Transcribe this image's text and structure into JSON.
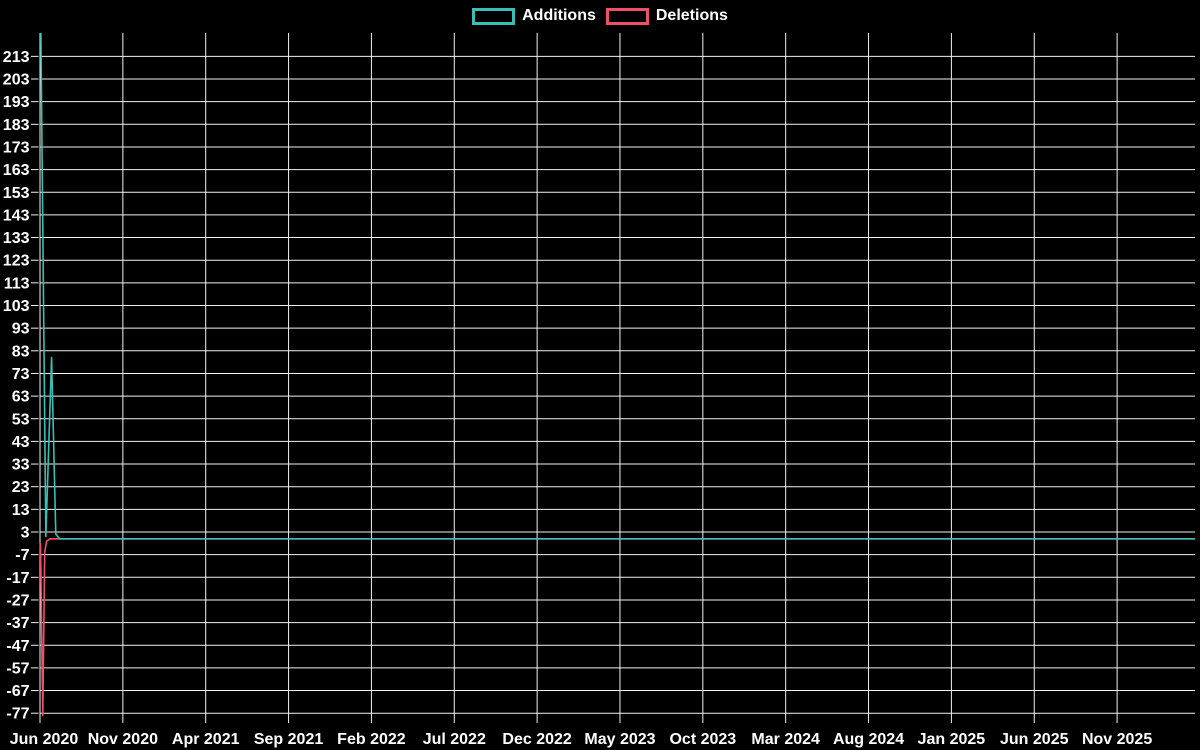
{
  "page": {
    "background_color": "#000000"
  },
  "chart_data": {
    "type": "line",
    "title": "",
    "xlabel": "",
    "ylabel": "",
    "legend_position": "top-center",
    "grid": true,
    "grid_color": "#f2f2f2",
    "text_color": "#ffffff",
    "background_color": "#000000",
    "x_tick_labels": [
      "Jun 2020",
      "Nov 2020",
      "Apr 2021",
      "Sep 2021",
      "Feb 2022",
      "Jul 2022",
      "Dec 2022",
      "May 2023",
      "Oct 2023",
      "Mar 2024",
      "Aug 2024",
      "Jan 2025",
      "Jun 2025",
      "Nov 2025"
    ],
    "y_tick_values": [
      213,
      203,
      193,
      183,
      173,
      163,
      153,
      143,
      133,
      123,
      113,
      103,
      93,
      83,
      73,
      63,
      53,
      43,
      33,
      23,
      13,
      3,
      -7,
      -17,
      -27,
      -37,
      -47,
      -57,
      -67,
      -77
    ],
    "ylim": [
      -79,
      223
    ],
    "x_unit": "weeks since Jun 2020, axis spans Jun 2020 - Nov 2025 plus margin",
    "series": [
      {
        "name": "Additions",
        "color": "#3abfb6",
        "points_week_value": [
          [
            0,
            240
          ],
          [
            1.4,
            1
          ],
          [
            2.9,
            80
          ],
          [
            4,
            2
          ],
          [
            5,
            0
          ]
        ],
        "tail_value": 0,
        "note": "first spike clipped above top of axis (> 213); ~80 spike the following weeks; 0 afterwards through Nov 2025"
      },
      {
        "name": "Deletions",
        "color": "#ee4f6b",
        "points_week_value": [
          [
            0,
            -2
          ],
          [
            0.6,
            -78
          ],
          [
            1.1,
            -6
          ],
          [
            1.6,
            -1
          ],
          [
            2.5,
            0
          ]
        ],
        "tail_value": 0,
        "note": "single downward spike to about -77 in Jun 2020; 0 afterwards through Nov 2025"
      }
    ]
  }
}
